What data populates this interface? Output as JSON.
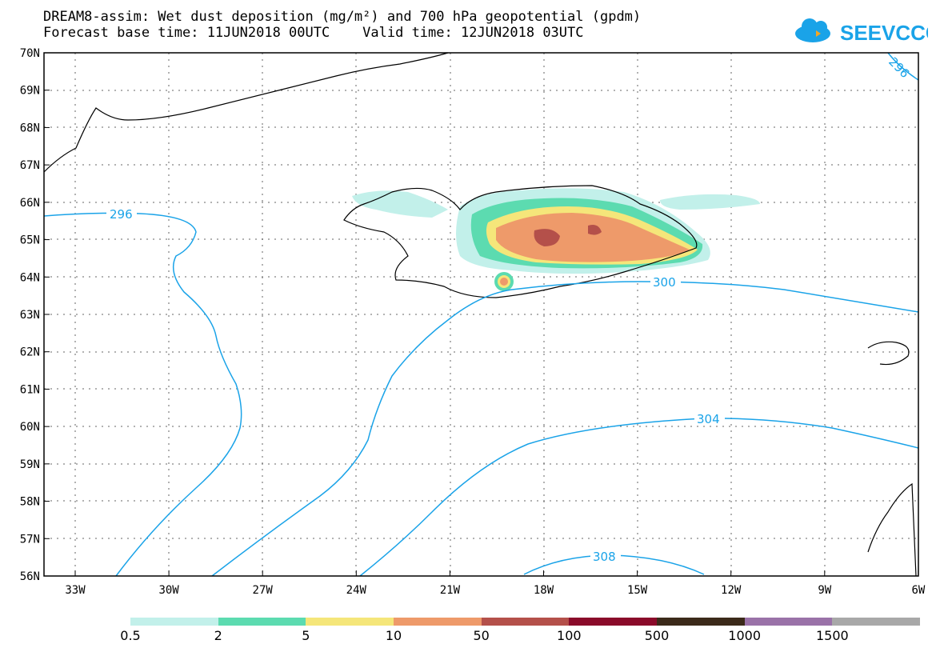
{
  "title_line1": "DREAM8-assim: Wet dust deposition (mg/m²) and 700 hPa geopotential (gpdm)",
  "title_line2": "Forecast base time: 11JUN2018 00UTC    Valid time: 12JUN2018 03UTC",
  "logo_text": "SEEVCCC",
  "lat_labels": [
    "70N",
    "69N",
    "68N",
    "67N",
    "66N",
    "65N",
    "64N",
    "63N",
    "62N",
    "61N",
    "60N",
    "59N",
    "58N",
    "57N",
    "56N"
  ],
  "lon_labels": [
    "33W",
    "30W",
    "27W",
    "24W",
    "21W",
    "18W",
    "15W",
    "12W",
    "9W",
    "6W"
  ],
  "contour_labels": [
    "296",
    "296",
    "300",
    "304",
    "308"
  ],
  "legend": {
    "colors": [
      "#c2f0ea",
      "#5cdbb0",
      "#f5e67a",
      "#ee9a6a",
      "#b4504a",
      "#8a0a2a",
      "#3b2a1a",
      "#9a72a8",
      "#a8a8a8"
    ],
    "labels": [
      "0.5",
      "2",
      "5",
      "10",
      "50",
      "100",
      "500",
      "1000",
      "1500"
    ]
  },
  "colors": {
    "contour": "#1aa3e8",
    "logo": "#1aa3e8"
  }
}
